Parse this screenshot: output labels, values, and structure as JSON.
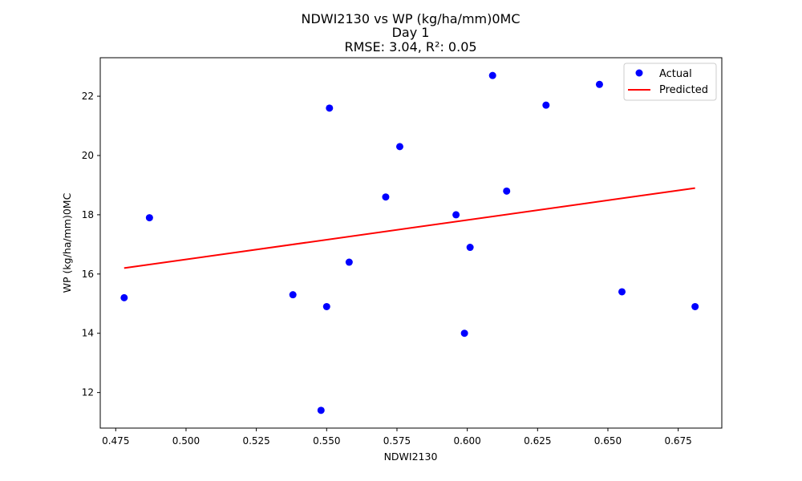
{
  "chart_data": {
    "type": "scatter",
    "title": "NDWI2130 vs WP (kg/ha/mm)0MC",
    "subtitle": "Day 1",
    "metrics": "RMSE: 3.04, R²: 0.05",
    "xlabel": "NDWI2130",
    "ylabel": "WP (kg/ha/mm)0MC",
    "xlim": [
      0.4695,
      0.6905
    ],
    "ylim": [
      10.8,
      23.3
    ],
    "x_ticks": [
      0.475,
      0.5,
      0.525,
      0.55,
      0.575,
      0.6,
      0.625,
      0.65,
      0.675
    ],
    "x_tick_labels": [
      "0.475",
      "0.500",
      "0.525",
      "0.550",
      "0.575",
      "0.600",
      "0.625",
      "0.650",
      "0.675"
    ],
    "y_ticks": [
      12,
      14,
      16,
      18,
      20,
      22
    ],
    "y_tick_labels": [
      "12",
      "14",
      "16",
      "18",
      "20",
      "22"
    ],
    "grid": false,
    "legend_position": "top-right",
    "series": [
      {
        "name": "Actual",
        "kind": "scatter",
        "color": "#0000ff",
        "points": [
          {
            "x": 0.478,
            "y": 15.2
          },
          {
            "x": 0.487,
            "y": 17.9
          },
          {
            "x": 0.538,
            "y": 15.3
          },
          {
            "x": 0.548,
            "y": 11.4
          },
          {
            "x": 0.55,
            "y": 14.9
          },
          {
            "x": 0.551,
            "y": 21.6
          },
          {
            "x": 0.558,
            "y": 16.4
          },
          {
            "x": 0.571,
            "y": 18.6
          },
          {
            "x": 0.576,
            "y": 20.3
          },
          {
            "x": 0.596,
            "y": 18.0
          },
          {
            "x": 0.599,
            "y": 14.0
          },
          {
            "x": 0.601,
            "y": 16.9
          },
          {
            "x": 0.609,
            "y": 22.7
          },
          {
            "x": 0.614,
            "y": 18.8
          },
          {
            "x": 0.628,
            "y": 21.7
          },
          {
            "x": 0.647,
            "y": 22.4
          },
          {
            "x": 0.655,
            "y": 15.4
          },
          {
            "x": 0.681,
            "y": 14.9
          }
        ]
      },
      {
        "name": "Predicted",
        "kind": "line",
        "color": "#ff0000",
        "points": [
          {
            "x": 0.478,
            "y": 16.2
          },
          {
            "x": 0.681,
            "y": 18.9
          }
        ]
      }
    ]
  }
}
